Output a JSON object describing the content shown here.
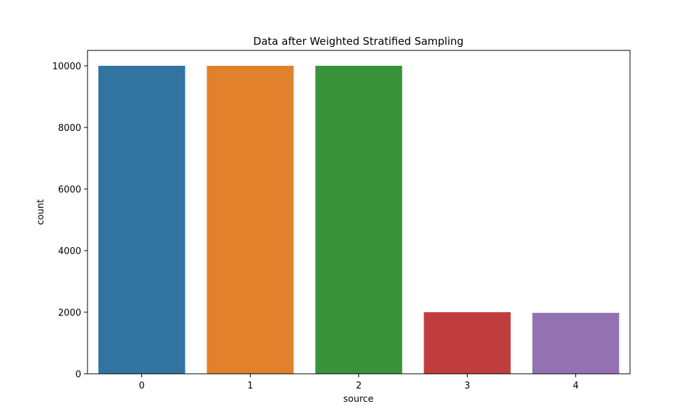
{
  "chart_data": {
    "type": "bar",
    "title": "Data after Weighted Stratified Sampling",
    "xlabel": "source",
    "ylabel": "count",
    "categories": [
      "0",
      "1",
      "2",
      "3",
      "4"
    ],
    "values": [
      10000,
      10000,
      10000,
      2000,
      1980
    ],
    "colors": [
      "#3274a1",
      "#e1812c",
      "#3a923a",
      "#c03d3e",
      "#9372b2"
    ],
    "yticks": [
      0,
      2000,
      4000,
      6000,
      8000,
      10000
    ],
    "ylim": [
      0,
      10500
    ],
    "grid": false,
    "legend": "none"
  }
}
